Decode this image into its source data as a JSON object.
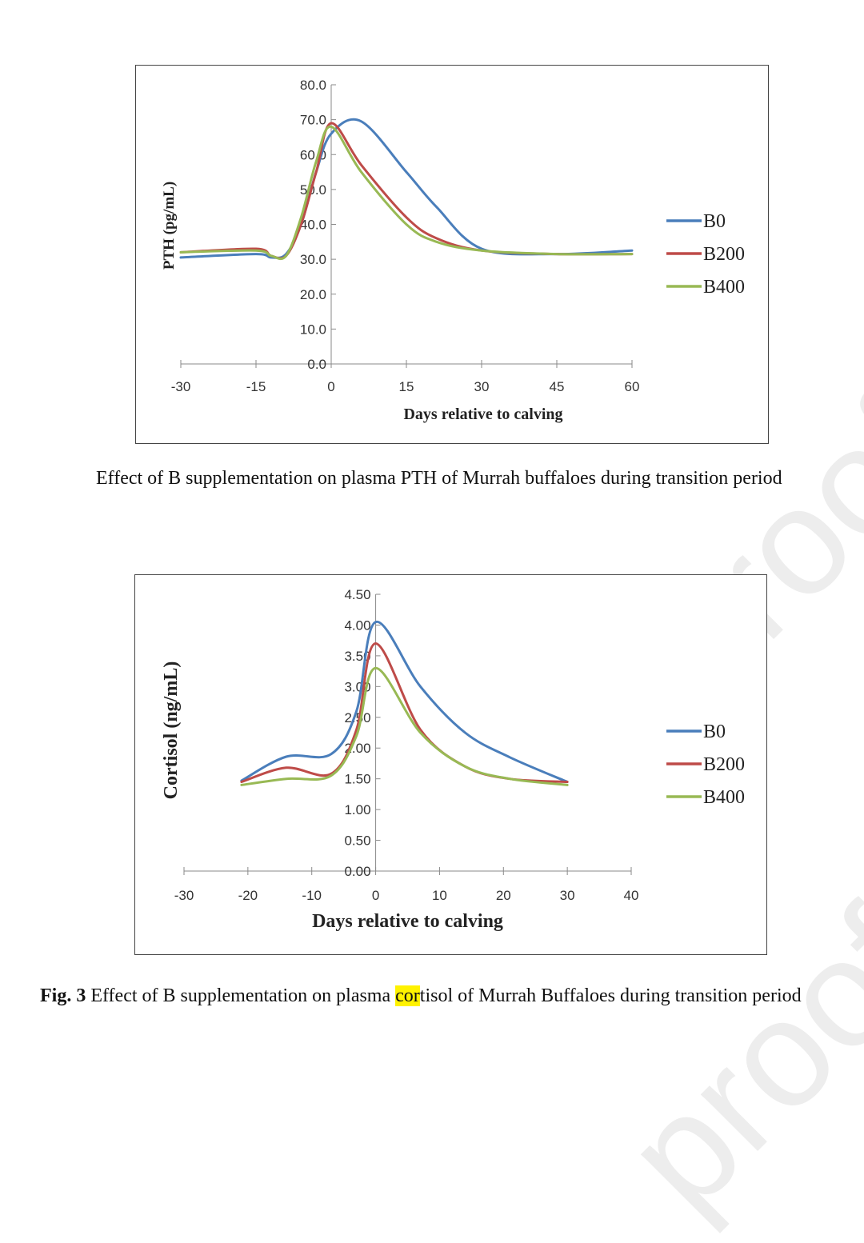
{
  "watermark_text": "proof",
  "captions": {
    "chart1": "Effect of B supplementation on plasma PTH of Murrah buffaloes during transition period",
    "chart2_label": "Fig. 3",
    "chart2_pre": " Effect of B supplementation on plasma ",
    "chart2_highlight": "cor",
    "chart2_post": "tisol of Murrah Buffaloes during transition period"
  },
  "chart_data": [
    {
      "type": "line",
      "xlabel": "Days relative to calving",
      "ylabel": "PTH (pg/mL)",
      "xlim": [
        -30,
        60
      ],
      "ylim": [
        0,
        80
      ],
      "x_ticks": [
        "-30",
        "-15",
        "0",
        "15",
        "30",
        "45",
        "60"
      ],
      "y_ticks": [
        "0.0",
        "10.0",
        "20.0",
        "30.0",
        "40.0",
        "50.0",
        "60.0",
        "70.0",
        "80.0"
      ],
      "grid": false,
      "legend_position": "right",
      "series": [
        {
          "name": "B0",
          "color": "#4a7ebb",
          "x": [
            -30,
            -15,
            -12,
            -9,
            -6,
            -3,
            0,
            6,
            15,
            21,
            30,
            45,
            60
          ],
          "y": [
            30.5,
            31.5,
            30.5,
            31.5,
            40,
            55,
            66,
            69.5,
            55,
            45,
            33,
            31.5,
            32.5
          ]
        },
        {
          "name": "B200",
          "color": "#be4b48",
          "x": [
            -30,
            -15,
            -12,
            -9,
            -6,
            -3,
            0,
            6,
            15,
            21,
            30,
            45,
            60
          ],
          "y": [
            32,
            33,
            31,
            31,
            40,
            55,
            69,
            57,
            42,
            36,
            32.5,
            31.5,
            31.5
          ]
        },
        {
          "name": "B400",
          "color": "#98b954",
          "x": [
            -30,
            -15,
            -12,
            -9,
            -6,
            -3,
            0,
            6,
            15,
            21,
            30,
            45,
            60
          ],
          "y": [
            32,
            32.5,
            31,
            31,
            42,
            58,
            68,
            55,
            40,
            35,
            32.5,
            31.5,
            31.5
          ]
        }
      ]
    },
    {
      "type": "line",
      "xlabel": "Days relative to calving",
      "ylabel": "Cortisol (ng/mL)",
      "xlim": [
        -30,
        40
      ],
      "ylim": [
        0,
        4.5
      ],
      "x_ticks": [
        "-30",
        "-20",
        "-10",
        "0",
        "10",
        "20",
        "30",
        "40"
      ],
      "y_ticks": [
        "0.00",
        "0.50",
        "1.00",
        "1.50",
        "2.00",
        "2.50",
        "3.00",
        "3.50",
        "4.00",
        "4.50"
      ],
      "grid": false,
      "legend_position": "right",
      "series": [
        {
          "name": "B0",
          "color": "#4a7ebb",
          "x": [
            -21,
            -14,
            -7,
            -3,
            0,
            7,
            14,
            21,
            30
          ],
          "y": [
            1.47,
            1.86,
            1.9,
            2.6,
            4.05,
            3.0,
            2.25,
            1.85,
            1.45
          ]
        },
        {
          "name": "B200",
          "color": "#be4b48",
          "x": [
            -21,
            -14,
            -7,
            -3,
            0,
            7,
            14,
            21,
            30
          ],
          "y": [
            1.45,
            1.68,
            1.58,
            2.3,
            3.7,
            2.3,
            1.7,
            1.5,
            1.45
          ]
        },
        {
          "name": "B400",
          "color": "#98b954",
          "x": [
            -21,
            -14,
            -7,
            -3,
            0,
            7,
            14,
            21,
            30
          ],
          "y": [
            1.4,
            1.5,
            1.55,
            2.2,
            3.3,
            2.25,
            1.7,
            1.5,
            1.4
          ]
        }
      ]
    }
  ]
}
